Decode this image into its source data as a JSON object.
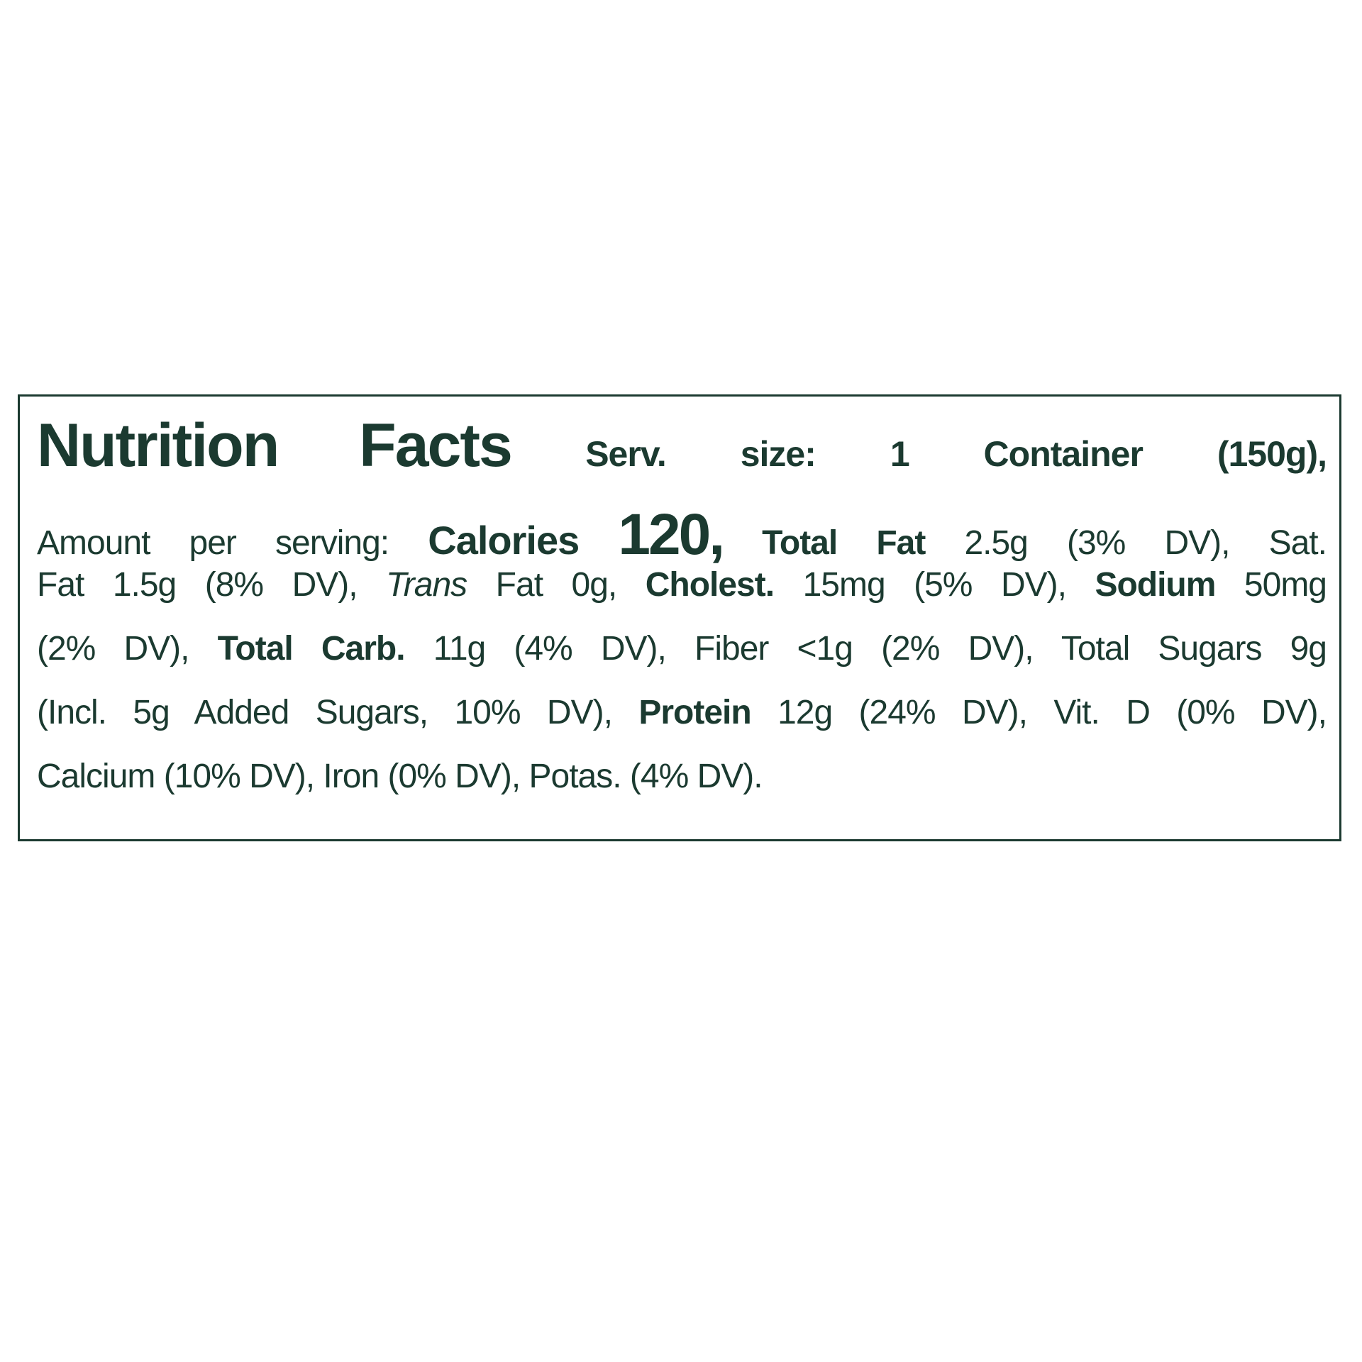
{
  "title": "Nutrition Facts",
  "serving_size": "Serv. size: 1 Container (150g),",
  "line2": {
    "amount": "Amount per serving:",
    "calories_label": "Calories",
    "calories_value": "120,",
    "fat_label": "Total Fat",
    "fat_value": "2.5g (3% DV), Sat."
  },
  "line3": {
    "a": "Fat 1.5g (8% DV),",
    "trans": "Trans",
    "b": "Fat 0g,",
    "cholest_label": "Cholest.",
    "c": "15mg (5% DV),",
    "sodium_label": "Sodium",
    "d": "50mg"
  },
  "line4": {
    "a": "(2% DV),",
    "carb_label": "Total Carb.",
    "b": "11g (4% DV), Fiber <1g (2% DV), Total Sugars 9g"
  },
  "line5": {
    "a": "(Incl. 5g Added Sugars, 10% DV),",
    "protein_label": "Protein",
    "b": "12g (24% DV), Vit. D (0% DV),"
  },
  "line6": {
    "a": "Calcium (10% DV), Iron (0% DV), Potas. (4% DV)."
  },
  "colors": {
    "text": "#1b3a30",
    "border": "#1b3a30",
    "background": "#ffffff"
  }
}
